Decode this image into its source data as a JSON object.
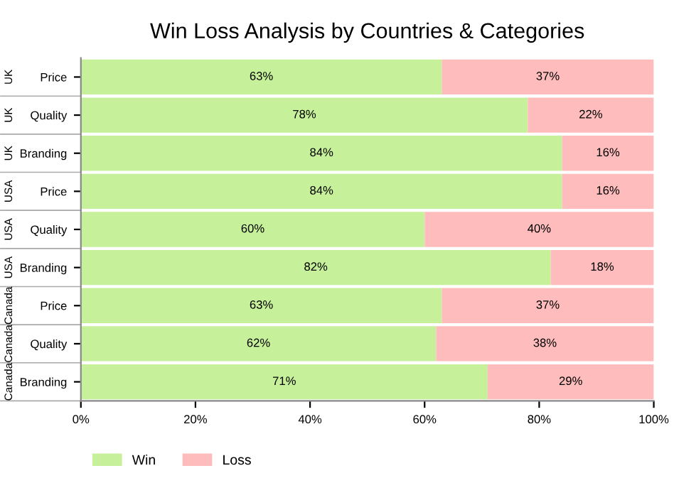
{
  "chart_data": {
    "type": "bar",
    "orientation": "horizontal",
    "stacked": true,
    "title": "Win Loss Analysis by Countries & Categories",
    "categories": [
      "Price",
      "Quality",
      "Branding",
      "Price",
      "Quality",
      "Branding",
      "Price",
      "Quality",
      "Branding"
    ],
    "annotations": [
      "UK",
      "UK",
      "UK",
      "USA",
      "USA",
      "USA",
      "Canada",
      "Canada",
      "Canada"
    ],
    "series": [
      {
        "name": "Win",
        "color": "#c6f19a",
        "values": [
          63,
          78,
          84,
          84,
          60,
          82,
          63,
          62,
          71
        ],
        "value_labels": [
          "63%",
          "78%",
          "84%",
          "84%",
          "60%",
          "82%",
          "63%",
          "62%",
          "71%"
        ]
      },
      {
        "name": "Loss",
        "color": "#ffbcbc",
        "values": [
          37,
          22,
          16,
          16,
          40,
          18,
          37,
          38,
          29
        ],
        "value_labels": [
          "37%",
          "22%",
          "16%",
          "16%",
          "40%",
          "18%",
          "37%",
          "38%",
          "29%"
        ]
      }
    ],
    "xlim": [
      0,
      100
    ],
    "xticks": [
      {
        "value": 0,
        "label": "0%"
      },
      {
        "value": 20,
        "label": "20%"
      },
      {
        "value": 40,
        "label": "40%"
      },
      {
        "value": 60,
        "label": "60%"
      },
      {
        "value": 80,
        "label": "80%"
      },
      {
        "value": 100,
        "label": "100%"
      }
    ],
    "grid": false,
    "legend": "bottom left"
  }
}
